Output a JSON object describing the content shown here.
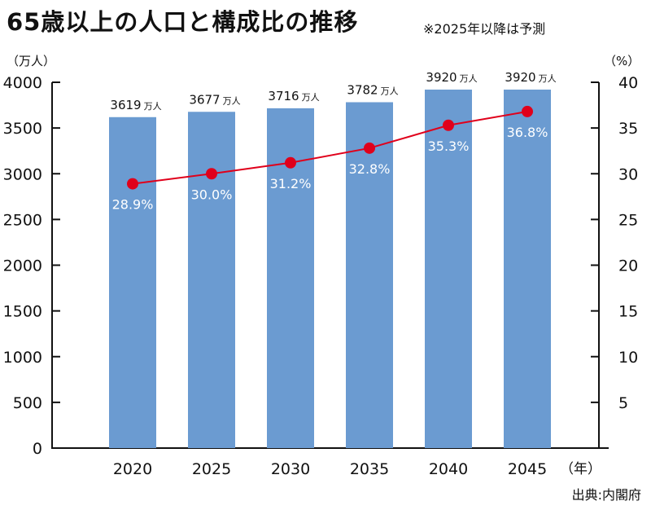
{
  "header": {
    "title": "65歳以上の人口と構成比の推移",
    "note": "※2025年以降は予測"
  },
  "source": "出典:内閣府",
  "chart_data": {
    "type": "bar",
    "categories": [
      "2020",
      "2025",
      "2030",
      "2035",
      "2040",
      "2045"
    ],
    "series": [
      {
        "type": "bar",
        "values": [
          3619,
          3677,
          3716,
          3782,
          3920,
          3920
        ],
        "labels": [
          "3619",
          "3677",
          "3716",
          "3782",
          "3920",
          "3920"
        ],
        "unit": "万人",
        "axis": "left",
        "color": "#6b9bd1"
      },
      {
        "type": "line",
        "values": [
          28.9,
          30.0,
          31.2,
          32.8,
          35.3,
          36.8
        ],
        "labels": [
          "28.9%",
          "30.0%",
          "31.2%",
          "32.8%",
          "35.3%",
          "36.8%"
        ],
        "axis": "right",
        "color": "#e0001b"
      }
    ],
    "y_left": {
      "unit_label": "（万人）",
      "ylim": [
        0,
        4000
      ],
      "ticks": [
        "0",
        "500",
        "1000",
        "1500",
        "2000",
        "2500",
        "3000",
        "3500",
        "4000"
      ],
      "tick_values": [
        0,
        500,
        1000,
        1500,
        2000,
        2500,
        3000,
        3500,
        4000
      ]
    },
    "y_right": {
      "unit_label": "（%）",
      "ylim": [
        0,
        40
      ],
      "ticks": [
        "5",
        "10",
        "15",
        "20",
        "25",
        "30",
        "35",
        "40"
      ],
      "tick_values": [
        5,
        10,
        15,
        20,
        25,
        30,
        35,
        40
      ]
    },
    "x_unit_label": "（年）",
    "grid": false
  }
}
